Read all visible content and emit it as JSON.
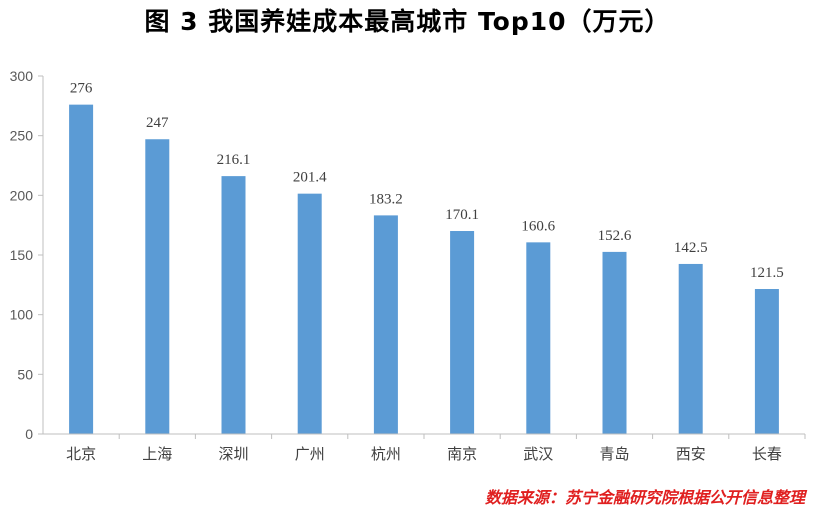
{
  "title": "图 3   我国养娃成本最高城市 Top10（万元）",
  "source": "数据来源：苏宁金融研究院根据公开信息整理",
  "colors": {
    "bar": "#5B9BD5",
    "axis": "#BFBFBF",
    "text": "#404040",
    "source": "#E02020"
  },
  "chart_data": {
    "type": "bar",
    "title": "我国养娃成本最高城市 Top10（万元）",
    "categories": [
      "北京",
      "上海",
      "深圳",
      "广州",
      "杭州",
      "南京",
      "武汉",
      "青岛",
      "西安",
      "长春"
    ],
    "values": [
      276,
      247,
      216.1,
      201.4,
      183.2,
      170.1,
      160.6,
      152.6,
      142.5,
      121.5
    ],
    "value_labels": [
      "276",
      "247",
      "216.1",
      "201.4",
      "183.2",
      "170.1",
      "160.6",
      "152.6",
      "142.5",
      "121.5"
    ],
    "y_ticks": [
      0,
      50,
      100,
      150,
      200,
      250,
      300
    ],
    "ylim": [
      0,
      300
    ],
    "xlabel": "",
    "ylabel": "",
    "grid": false,
    "legend": "none"
  }
}
